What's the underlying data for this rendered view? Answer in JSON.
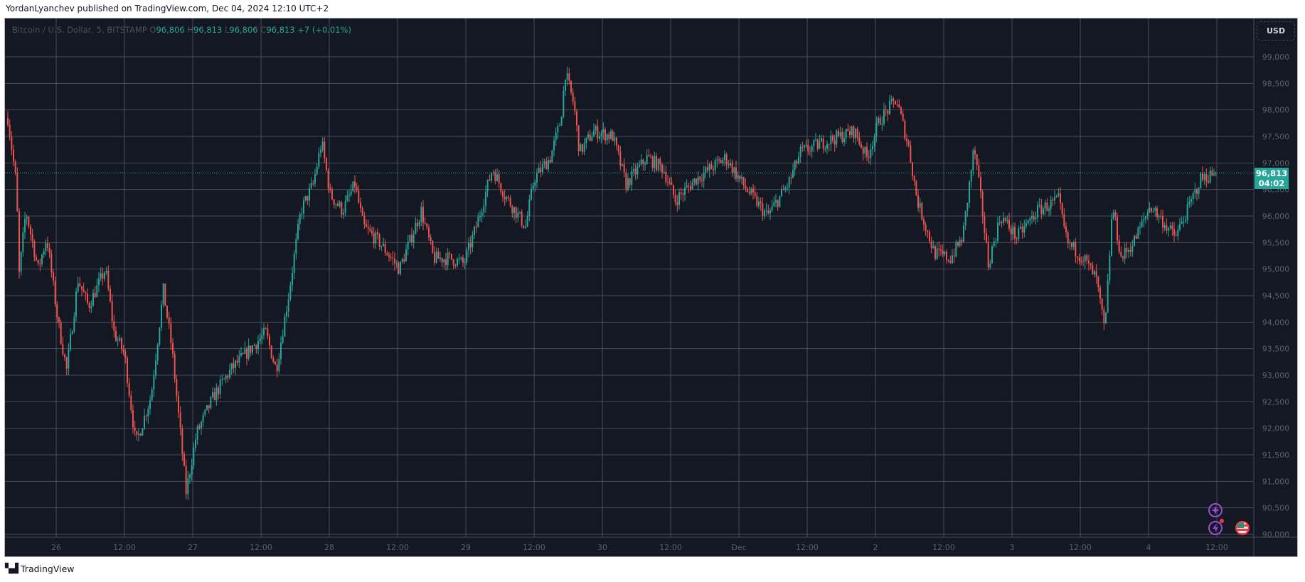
{
  "header": {
    "published": "YordanLyanchev published on TradingView.com, Dec 04, 2024 12:10 UTC+2"
  },
  "legend": {
    "symbol": "Bitcoin / U.S. Dollar, 5, BITSTAMP",
    "o_label": "O",
    "o": "96,806",
    "h_label": "H",
    "h": "96,813",
    "l_label": "L",
    "l": "96,806",
    "c_label": "C",
    "c": "96,813",
    "change": "+7 (+0.01%)"
  },
  "currency_button": "USD",
  "last_price": {
    "price": "96,813",
    "countdown": "04:02"
  },
  "footer": {
    "brand": "TradingView",
    "logo_text": "17"
  },
  "icons": [
    "sparkle-icon",
    "lightning-icon",
    "us-flag-icon"
  ],
  "colors": {
    "background": "#141823",
    "grid": "#3c3f4a",
    "up": "#26a69a",
    "down": "#ef5350",
    "axis_text": "#5d606b",
    "accent_purple": "#9c4cd8"
  },
  "chart_data": {
    "type": "candlestick",
    "title": "",
    "interval": "5",
    "ylim": [
      89900,
      99800
    ],
    "y_ticks": [
      90000,
      90500,
      91000,
      91500,
      92000,
      92500,
      93000,
      93500,
      94000,
      94500,
      95000,
      95500,
      96000,
      96500,
      97000,
      97500,
      98000,
      98500,
      99000
    ],
    "y_tick_labels": [
      "90,000",
      "90,500",
      "91,000",
      "91,500",
      "92,000",
      "92,500",
      "93,000",
      "93,500",
      "94,000",
      "94,500",
      "95,000",
      "95,500",
      "96,000",
      "96,500",
      "97,000",
      "97,500",
      "98,000",
      "98,500",
      "99,000"
    ],
    "x_ticks": [
      "2024-11-26T00:00",
      "2024-11-26T12:00",
      "2024-11-27T00:00",
      "2024-11-27T12:00",
      "2024-11-28T00:00",
      "2024-11-28T12:00",
      "2024-11-29T00:00",
      "2024-11-29T12:00",
      "2024-11-30T00:00",
      "2024-11-30T12:00",
      "2024-12-01T00:00",
      "2024-12-01T12:00",
      "2024-12-02T00:00",
      "2024-12-02T12:00",
      "2024-12-03T00:00",
      "2024-12-03T12:00",
      "2024-12-04T00:00",
      "2024-12-04T12:00"
    ],
    "x_tick_labels": [
      "26",
      "12:00",
      "27",
      "12:00",
      "28",
      "12:00",
      "29",
      "12:00",
      "30",
      "12:00",
      "Dec",
      "12:00",
      "2",
      "12:00",
      "3",
      "12:00",
      "4",
      "12:00"
    ],
    "approx_closes": [
      [
        "2024-11-25T15:30",
        97850
      ],
      [
        "2024-11-25T17:00",
        96600
      ],
      [
        "2024-11-25T17:30",
        94900
      ],
      [
        "2024-11-25T18:40",
        96100
      ],
      [
        "2024-11-25T20:50",
        95000
      ],
      [
        "2024-11-25T22:20",
        95600
      ],
      [
        "2024-11-26T00:20",
        94000
      ],
      [
        "2024-11-26T01:50",
        93100
      ],
      [
        "2024-11-26T03:50",
        94800
      ],
      [
        "2024-11-26T05:40",
        94300
      ],
      [
        "2024-11-26T08:40",
        95000
      ],
      [
        "2024-11-26T10:10",
        93800
      ],
      [
        "2024-11-26T12:00",
        93400
      ],
      [
        "2024-11-26T14:00",
        91700
      ],
      [
        "2024-11-26T16:40",
        92600
      ],
      [
        "2024-11-26T18:50",
        94600
      ],
      [
        "2024-11-26T20:20",
        93500
      ],
      [
        "2024-11-26T21:50",
        91900
      ],
      [
        "2024-11-26T22:50",
        90800
      ],
      [
        "2024-11-27T00:40",
        91900
      ],
      [
        "2024-11-27T03:40",
        92600
      ],
      [
        "2024-11-27T06:40",
        93100
      ],
      [
        "2024-11-27T10:10",
        93500
      ],
      [
        "2024-11-27T12:50",
        93800
      ],
      [
        "2024-11-27T14:40",
        93100
      ],
      [
        "2024-11-27T16:50",
        94500
      ],
      [
        "2024-11-27T19:00",
        96100
      ],
      [
        "2024-11-27T21:10",
        96600
      ],
      [
        "2024-11-27T22:40",
        97400
      ],
      [
        "2024-11-28T00:10",
        96400
      ],
      [
        "2024-11-28T02:20",
        96100
      ],
      [
        "2024-11-28T04:30",
        96600
      ],
      [
        "2024-11-28T06:00",
        95800
      ],
      [
        "2024-11-28T08:50",
        95500
      ],
      [
        "2024-11-28T12:20",
        95000
      ],
      [
        "2024-11-28T16:10",
        96100
      ],
      [
        "2024-11-28T18:20",
        95200
      ],
      [
        "2024-11-28T21:20",
        95200
      ],
      [
        "2024-11-28T23:40",
        95100
      ],
      [
        "2024-11-29T01:50",
        95800
      ],
      [
        "2024-11-29T04:40",
        96900
      ],
      [
        "2024-11-29T06:50",
        96400
      ],
      [
        "2024-11-29T10:30",
        95800
      ],
      [
        "2024-11-29T12:00",
        96700
      ],
      [
        "2024-11-29T14:50",
        97100
      ],
      [
        "2024-11-29T16:40",
        97800
      ],
      [
        "2024-11-29T17:30",
        98700
      ],
      [
        "2024-11-29T19:00",
        98100
      ],
      [
        "2024-11-29T20:00",
        97200
      ],
      [
        "2024-11-29T22:30",
        97600
      ],
      [
        "2024-11-30T01:50",
        97500
      ],
      [
        "2024-11-30T04:10",
        96600
      ],
      [
        "2024-11-30T07:50",
        97100
      ],
      [
        "2024-11-30T10:40",
        96900
      ],
      [
        "2024-11-30T12:50",
        96300
      ],
      [
        "2024-11-30T16:30",
        96700
      ],
      [
        "2024-11-30T21:40",
        97100
      ],
      [
        "2024-12-01T00:40",
        96600
      ],
      [
        "2024-12-01T05:00",
        96000
      ],
      [
        "2024-12-01T08:40",
        96600
      ],
      [
        "2024-12-01T10:50",
        97200
      ],
      [
        "2024-12-01T15:10",
        97400
      ],
      [
        "2024-12-01T20:20",
        97600
      ],
      [
        "2024-12-01T22:30",
        97100
      ],
      [
        "2024-12-02T00:40",
        97800
      ],
      [
        "2024-12-02T03:40",
        98200
      ],
      [
        "2024-12-02T05:50",
        97300
      ],
      [
        "2024-12-02T07:20",
        96300
      ],
      [
        "2024-12-02T10:20",
        95300
      ],
      [
        "2024-12-02T13:10",
        95200
      ],
      [
        "2024-12-02T15:20",
        95600
      ],
      [
        "2024-12-02T17:20",
        97300
      ],
      [
        "2024-12-02T18:40",
        96200
      ],
      [
        "2024-12-02T19:50",
        95100
      ],
      [
        "2024-12-02T22:00",
        96000
      ],
      [
        "2024-12-03T00:50",
        95600
      ],
      [
        "2024-12-03T04:30",
        96100
      ],
      [
        "2024-12-03T08:10",
        96300
      ],
      [
        "2024-12-03T09:40",
        95500
      ],
      [
        "2024-12-03T12:40",
        95200
      ],
      [
        "2024-12-03T14:50",
        94800
      ],
      [
        "2024-12-03T16:20",
        93800
      ],
      [
        "2024-12-03T17:40",
        96200
      ],
      [
        "2024-12-03T19:10",
        95200
      ],
      [
        "2024-12-03T21:20",
        95500
      ],
      [
        "2024-12-04T00:20",
        96200
      ],
      [
        "2024-12-04T02:30",
        95900
      ],
      [
        "2024-12-04T04:40",
        95600
      ],
      [
        "2024-12-04T06:50",
        96100
      ],
      [
        "2024-12-04T09:10",
        96700
      ],
      [
        "2024-12-04T11:55",
        96813
      ]
    ],
    "last_price": 96813,
    "grid": true
  }
}
